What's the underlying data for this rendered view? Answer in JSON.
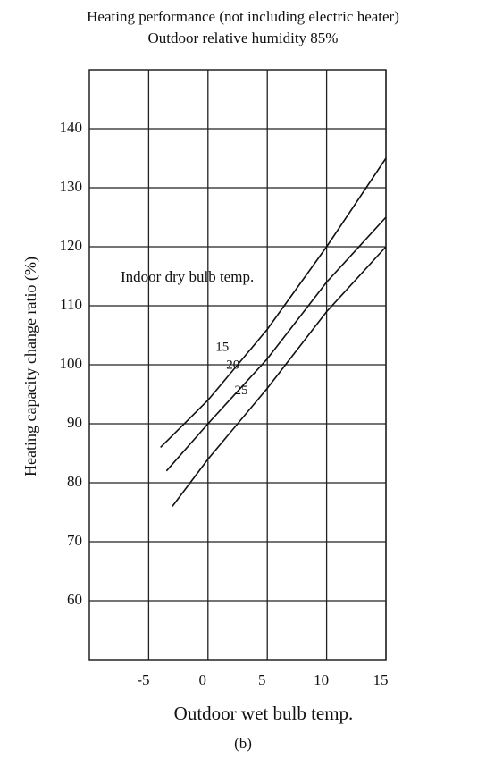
{
  "chart_data": {
    "type": "line",
    "title": "Heating performance (not including electric heater)",
    "subtitle": "Outdoor relative humidity 85%",
    "y_label": "Heating capacity change ratio (%)",
    "x_label": "Outdoor wet bulb temp.",
    "caption": "(b)",
    "annotation": "Indoor dry bulb temp.",
    "xlim": [
      -10,
      15
    ],
    "xticks": [
      -5,
      0,
      5,
      10,
      15
    ],
    "ylim": [
      50,
      150
    ],
    "yticks": [
      60,
      70,
      80,
      90,
      100,
      110,
      120,
      130,
      140
    ],
    "grid": true,
    "series": [
      {
        "name": "15",
        "color": "#111111",
        "x": [
          -4,
          0,
          5,
          10,
          15
        ],
        "values": [
          86,
          94,
          106,
          120,
          135
        ]
      },
      {
        "name": "20",
        "color": "#111111",
        "x": [
          -3.5,
          0,
          5,
          10,
          15
        ],
        "values": [
          82,
          90,
          101,
          114,
          125
        ]
      },
      {
        "name": "25",
        "color": "#111111",
        "x": [
          -3,
          0,
          5,
          10,
          15
        ],
        "values": [
          76,
          84,
          96,
          109,
          120
        ]
      }
    ]
  }
}
